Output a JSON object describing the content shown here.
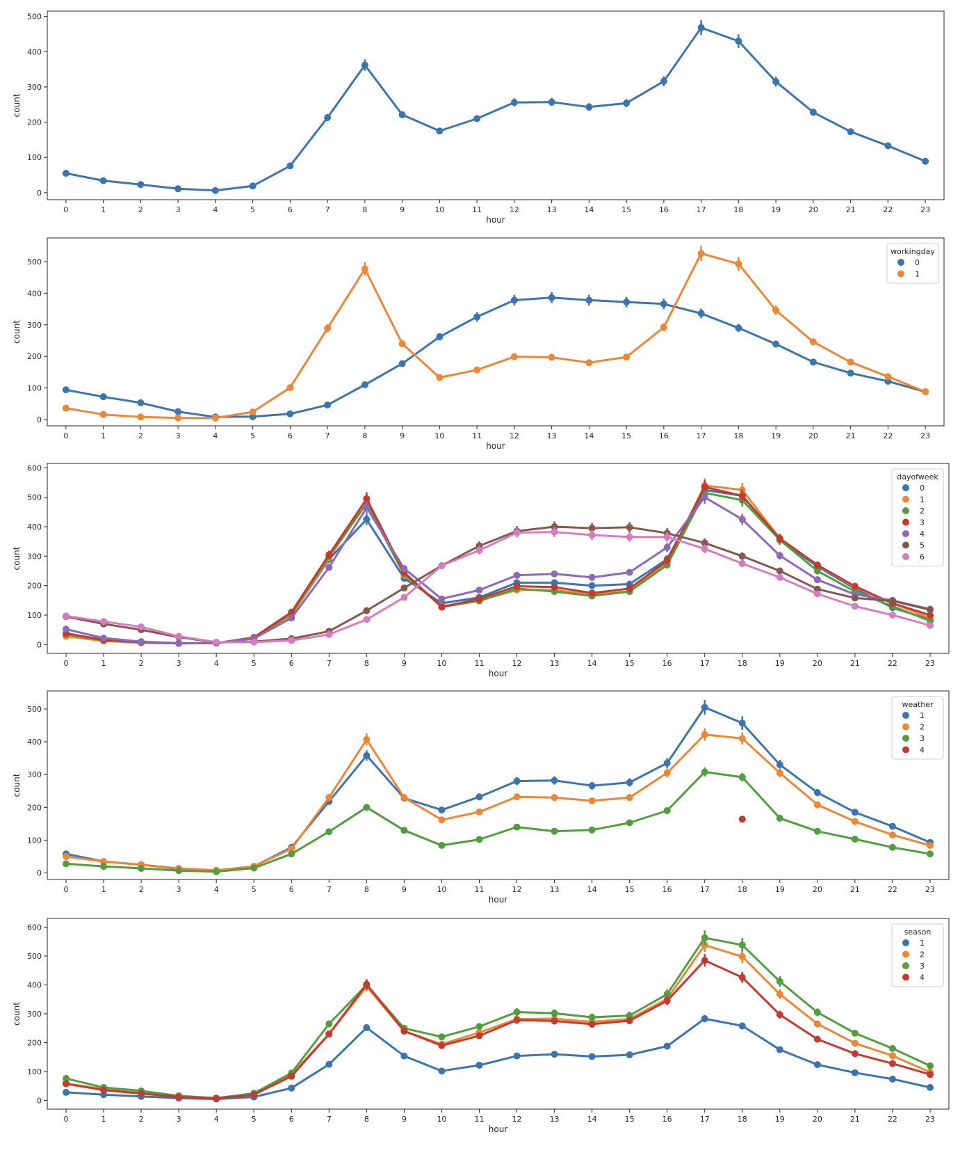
{
  "colors": [
    "#3a75af",
    "#ef8636",
    "#519e3e",
    "#c53932",
    "#8d69b8",
    "#84584e",
    "#d57dbf"
  ],
  "chart_data": [
    {
      "type": "line",
      "xlabel": "hour",
      "ylabel": "count",
      "categories": [
        "0",
        "1",
        "2",
        "3",
        "4",
        "5",
        "6",
        "7",
        "8",
        "9",
        "10",
        "11",
        "12",
        "13",
        "14",
        "15",
        "16",
        "17",
        "18",
        "19",
        "20",
        "21",
        "22",
        "23"
      ],
      "ylim": [
        -20,
        515
      ],
      "yticks": [
        0,
        100,
        200,
        300,
        400,
        500
      ],
      "legend": null,
      "series": [
        {
          "values": [
            55,
            34,
            23,
            11,
            6,
            19,
            76,
            213,
            362,
            221,
            175,
            210,
            256,
            257,
            243,
            254,
            316,
            468,
            430,
            315,
            228,
            173,
            133,
            89
          ]
        }
      ]
    },
    {
      "type": "line",
      "xlabel": "hour",
      "ylabel": "count",
      "categories": [
        "0",
        "1",
        "2",
        "3",
        "4",
        "5",
        "6",
        "7",
        "8",
        "9",
        "10",
        "11",
        "12",
        "13",
        "14",
        "15",
        "16",
        "17",
        "18",
        "19",
        "20",
        "21",
        "22",
        "23"
      ],
      "ylim": [
        -20,
        575
      ],
      "yticks": [
        0,
        100,
        200,
        300,
        400,
        500
      ],
      "legend": {
        "title": "workingday",
        "placement": "upper-right"
      },
      "series": [
        {
          "name": "0",
          "values": [
            94,
            72,
            53,
            25,
            8,
            9,
            18,
            46,
            110,
            177,
            262,
            325,
            378,
            386,
            378,
            372,
            366,
            336,
            290,
            239,
            182,
            147,
            121,
            88
          ]
        },
        {
          "name": "1",
          "values": [
            36,
            16,
            8,
            5,
            5,
            24,
            101,
            289,
            477,
            240,
            133,
            157,
            199,
            197,
            180,
            198,
            292,
            526,
            493,
            346,
            246,
            182,
            136,
            88
          ]
        }
      ]
    },
    {
      "type": "line",
      "xlabel": "hour",
      "ylabel": "count",
      "categories": [
        "0",
        "1",
        "2",
        "3",
        "4",
        "5",
        "6",
        "7",
        "8",
        "9",
        "10",
        "11",
        "12",
        "13",
        "14",
        "15",
        "16",
        "17",
        "18",
        "19",
        "20",
        "21",
        "22",
        "23"
      ],
      "ylim": [
        -30,
        615
      ],
      "yticks": [
        0,
        100,
        200,
        300,
        400,
        500,
        600
      ],
      "legend": {
        "title": "dayofweek",
        "placement": "upper-right"
      },
      "series": [
        {
          "name": "0",
          "values": [
            32,
            14,
            7,
            4,
            5,
            22,
            100,
            290,
            425,
            225,
            140,
            160,
            210,
            210,
            200,
            205,
            290,
            525,
            505,
            355,
            265,
            190,
            125,
            85
          ]
        },
        {
          "name": "1",
          "values": [
            28,
            12,
            6,
            4,
            5,
            22,
            100,
            295,
            480,
            235,
            130,
            150,
            185,
            185,
            170,
            180,
            280,
            540,
            525,
            360,
            270,
            195,
            140,
            90
          ]
        },
        {
          "name": "2",
          "values": [
            35,
            14,
            7,
            4,
            5,
            22,
            105,
            300,
            480,
            240,
            128,
            148,
            190,
            180,
            165,
            180,
            270,
            515,
            490,
            355,
            250,
            180,
            130,
            80
          ]
        },
        {
          "name": "3",
          "values": [
            38,
            16,
            8,
            4,
            5,
            24,
            110,
            305,
            495,
            245,
            127,
            155,
            198,
            195,
            175,
            190,
            285,
            535,
            505,
            360,
            270,
            198,
            140,
            100
          ]
        },
        {
          "name": "4",
          "values": [
            52,
            22,
            10,
            5,
            5,
            20,
            90,
            262,
            465,
            258,
            155,
            185,
            235,
            240,
            228,
            245,
            330,
            500,
            425,
            302,
            220,
            170,
            150,
            120
          ]
        },
        {
          "name": "5",
          "values": [
            95,
            70,
            50,
            25,
            7,
            10,
            20,
            45,
            115,
            192,
            268,
            335,
            385,
            400,
            395,
            398,
            378,
            345,
            300,
            250,
            188,
            158,
            148,
            118
          ]
        },
        {
          "name": "6",
          "values": [
            97,
            78,
            60,
            28,
            8,
            8,
            14,
            34,
            85,
            160,
            268,
            320,
            380,
            382,
            372,
            365,
            365,
            325,
            275,
            228,
            172,
            130,
            100,
            65
          ]
        }
      ]
    },
    {
      "type": "line",
      "xlabel": "hour",
      "ylabel": "count",
      "categories": [
        "0",
        "1",
        "2",
        "3",
        "4",
        "5",
        "6",
        "7",
        "8",
        "9",
        "10",
        "11",
        "12",
        "13",
        "14",
        "15",
        "16",
        "17",
        "18",
        "19",
        "20",
        "21",
        "22",
        "23"
      ],
      "ylim": [
        -20,
        555
      ],
      "yticks": [
        0,
        100,
        200,
        300,
        400,
        500
      ],
      "legend": {
        "title": "weather",
        "placement": "upper-right"
      },
      "series": [
        {
          "name": "1",
          "values": [
            58,
            35,
            25,
            12,
            7,
            20,
            78,
            218,
            358,
            228,
            192,
            232,
            280,
            282,
            266,
            276,
            335,
            505,
            457,
            330,
            245,
            185,
            142,
            93
          ]
        },
        {
          "name": "2",
          "values": [
            50,
            35,
            25,
            14,
            8,
            20,
            74,
            230,
            407,
            230,
            162,
            186,
            232,
            230,
            220,
            230,
            305,
            422,
            410,
            305,
            208,
            157,
            116,
            84
          ]
        },
        {
          "name": "3",
          "values": [
            28,
            20,
            14,
            7,
            4,
            15,
            58,
            126,
            200,
            130,
            84,
            102,
            140,
            127,
            131,
            153,
            190,
            308,
            292,
            167,
            127,
            103,
            78,
            58
          ]
        },
        {
          "name": "4",
          "values": [
            null,
            null,
            null,
            null,
            null,
            null,
            null,
            null,
            null,
            null,
            null,
            null,
            null,
            null,
            null,
            null,
            null,
            null,
            164,
            null,
            null,
            null,
            null,
            null
          ]
        }
      ]
    },
    {
      "type": "line",
      "xlabel": "hour",
      "ylabel": "count",
      "categories": [
        "0",
        "1",
        "2",
        "3",
        "4",
        "5",
        "6",
        "7",
        "8",
        "9",
        "10",
        "11",
        "12",
        "13",
        "14",
        "15",
        "16",
        "17",
        "18",
        "19",
        "20",
        "21",
        "22",
        "23"
      ],
      "ylim": [
        -30,
        630
      ],
      "yticks": [
        0,
        100,
        200,
        300,
        400,
        500,
        600
      ],
      "legend": {
        "title": "season",
        "placement": "upper-right"
      },
      "series": [
        {
          "name": "1",
          "values": [
            28,
            20,
            14,
            8,
            5,
            12,
            43,
            125,
            252,
            154,
            102,
            122,
            154,
            160,
            152,
            158,
            188,
            283,
            258,
            176,
            124,
            96,
            74,
            45
          ]
        },
        {
          "name": "2",
          "values": [
            58,
            40,
            28,
            14,
            8,
            22,
            90,
            230,
            395,
            240,
            195,
            235,
            282,
            283,
            272,
            282,
            352,
            538,
            498,
            368,
            265,
            198,
            155,
            98
          ]
        },
        {
          "name": "3",
          "values": [
            76,
            45,
            33,
            16,
            8,
            25,
            95,
            265,
            400,
            250,
            220,
            256,
            306,
            302,
            288,
            294,
            368,
            563,
            538,
            412,
            305,
            233,
            180,
            120
          ]
        },
        {
          "name": "4",
          "values": [
            58,
            36,
            24,
            12,
            8,
            20,
            84,
            230,
            402,
            240,
            190,
            224,
            278,
            275,
            264,
            276,
            345,
            485,
            426,
            297,
            212,
            162,
            128,
            90
          ]
        }
      ]
    }
  ]
}
